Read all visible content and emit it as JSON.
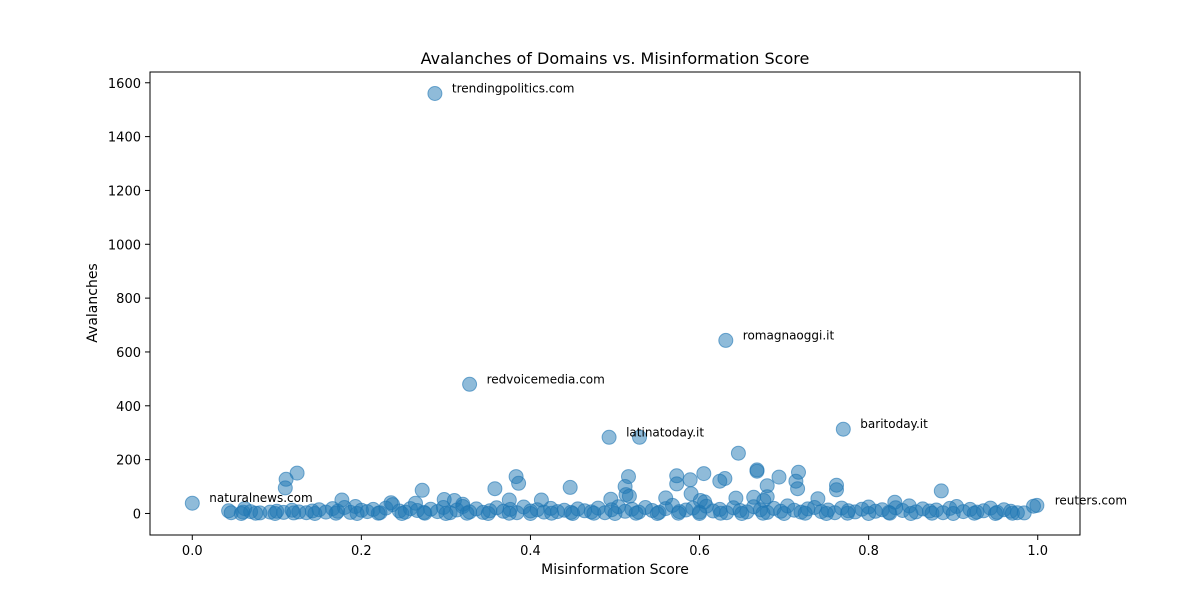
{
  "chart_data": {
    "type": "scatter",
    "title": "Avalanches of Domains vs. Misinformation Score",
    "xlabel": "Misinformation Score",
    "ylabel": "Avalanches",
    "xlim": [
      -0.05,
      1.05
    ],
    "ylim": [
      -80,
      1640
    ],
    "xticks": [
      0.0,
      0.2,
      0.4,
      0.6,
      0.8,
      1.0
    ],
    "xtick_labels": [
      "0.0",
      "0.2",
      "0.4",
      "0.6",
      "0.8",
      "1.0"
    ],
    "yticks": [
      0,
      200,
      400,
      600,
      800,
      1000,
      1200,
      1400,
      1600
    ],
    "ytick_labels": [
      "0",
      "200",
      "400",
      "600",
      "800",
      "1000",
      "1200",
      "1400",
      "1600"
    ],
    "grid": false,
    "legend": "none",
    "marker_color": "#1f77b4",
    "marker_alpha": 0.5,
    "annotations": [
      {
        "label": "trendingpolitics.com",
        "x": 0.287,
        "y": 1560
      },
      {
        "label": "romagnaoggi.it",
        "x": 0.631,
        "y": 643
      },
      {
        "label": "redvoicemedia.com",
        "x": 0.328,
        "y": 480
      },
      {
        "label": "baritoday.it",
        "x": 0.77,
        "y": 313
      },
      {
        "label": "latinatoday.it",
        "x": 0.493,
        "y": 283
      },
      {
        "label": "naturalnews.com",
        "x": 0.0,
        "y": 38
      },
      {
        "label": "reuters.com",
        "x": 1.0,
        "y": 30
      }
    ],
    "points": [
      [
        0.287,
        1560
      ],
      [
        0.631,
        643
      ],
      [
        0.328,
        480
      ],
      [
        0.77,
        313
      ],
      [
        0.493,
        283
      ],
      [
        0.529,
        283
      ],
      [
        0.646,
        224
      ],
      [
        0.668,
        162
      ],
      [
        0.668,
        157
      ],
      [
        0.717,
        153
      ],
      [
        0.124,
        150
      ],
      [
        0.605,
        148
      ],
      [
        0.383,
        137
      ],
      [
        0.516,
        137
      ],
      [
        0.573,
        140
      ],
      [
        0.694,
        135
      ],
      [
        0.63,
        130
      ],
      [
        0.111,
        127
      ],
      [
        0.589,
        125
      ],
      [
        0.624,
        120
      ],
      [
        0.714,
        120
      ],
      [
        0.386,
        112
      ],
      [
        0.573,
        110
      ],
      [
        0.762,
        105
      ],
      [
        0.68,
        103
      ],
      [
        0.716,
        92
      ],
      [
        0.11,
        95
      ],
      [
        0.358,
        92
      ],
      [
        0.447,
        97
      ],
      [
        0.512,
        100
      ],
      [
        0.762,
        88
      ],
      [
        0.886,
        84
      ],
      [
        0.272,
        86
      ],
      [
        0.59,
        73
      ],
      [
        0.513,
        70
      ],
      [
        0.517,
        64
      ],
      [
        0.643,
        57
      ],
      [
        0.664,
        60
      ],
      [
        0.68,
        62
      ],
      [
        0.74,
        55
      ],
      [
        0.177,
        50
      ],
      [
        0.298,
        52
      ],
      [
        0.31,
        48
      ],
      [
        0.375,
        50
      ],
      [
        0.413,
        50
      ],
      [
        0.495,
        53
      ],
      [
        0.56,
        58
      ],
      [
        0.601,
        48
      ],
      [
        0.606,
        43
      ],
      [
        0.676,
        48
      ],
      [
        0.831,
        42
      ],
      [
        0.235,
        40
      ],
      [
        0.264,
        38
      ],
      [
        0.32,
        34
      ],
      [
        0.999,
        30
      ],
      [
        0.995,
        27
      ],
      [
        0.0,
        38
      ],
      [
        0.062,
        18
      ],
      [
        0.043,
        10
      ],
      [
        0.046,
        3
      ],
      [
        0.06,
        5
      ],
      [
        0.069,
        7
      ],
      [
        0.08,
        2
      ],
      [
        0.092,
        5
      ],
      [
        0.1,
        8
      ],
      [
        0.108,
        4
      ],
      [
        0.118,
        12
      ],
      [
        0.126,
        6
      ],
      [
        0.135,
        3
      ],
      [
        0.142,
        9
      ],
      [
        0.15,
        14
      ],
      [
        0.158,
        5
      ],
      [
        0.166,
        18
      ],
      [
        0.172,
        8
      ],
      [
        0.18,
        22
      ],
      [
        0.187,
        4
      ],
      [
        0.193,
        26
      ],
      [
        0.2,
        12
      ],
      [
        0.207,
        7
      ],
      [
        0.214,
        15
      ],
      [
        0.222,
        3
      ],
      [
        0.229,
        20
      ],
      [
        0.237,
        33
      ],
      [
        0.245,
        9
      ],
      [
        0.252,
        5
      ],
      [
        0.258,
        18
      ],
      [
        0.266,
        11
      ],
      [
        0.274,
        4
      ],
      [
        0.282,
        16
      ],
      [
        0.29,
        7
      ],
      [
        0.297,
        22
      ],
      [
        0.305,
        3
      ],
      [
        0.313,
        13
      ],
      [
        0.32,
        26
      ],
      [
        0.328,
        6
      ],
      [
        0.336,
        17
      ],
      [
        0.344,
        4
      ],
      [
        0.352,
        10
      ],
      [
        0.36,
        21
      ],
      [
        0.368,
        8
      ],
      [
        0.376,
        15
      ],
      [
        0.384,
        3
      ],
      [
        0.392,
        24
      ],
      [
        0.4,
        9
      ],
      [
        0.408,
        14
      ],
      [
        0.416,
        5
      ],
      [
        0.424,
        19
      ],
      [
        0.432,
        7
      ],
      [
        0.44,
        12
      ],
      [
        0.448,
        4
      ],
      [
        0.456,
        17
      ],
      [
        0.464,
        10
      ],
      [
        0.472,
        6
      ],
      [
        0.48,
        20
      ],
      [
        0.488,
        3
      ],
      [
        0.496,
        14
      ],
      [
        0.504,
        25
      ],
      [
        0.512,
        8
      ],
      [
        0.52,
        16
      ],
      [
        0.528,
        5
      ],
      [
        0.536,
        22
      ],
      [
        0.544,
        11
      ],
      [
        0.552,
        4
      ],
      [
        0.56,
        18
      ],
      [
        0.568,
        30
      ],
      [
        0.576,
        7
      ],
      [
        0.584,
        13
      ],
      [
        0.592,
        20
      ],
      [
        0.6,
        5
      ],
      [
        0.608,
        27
      ],
      [
        0.616,
        9
      ],
      [
        0.624,
        15
      ],
      [
        0.632,
        3
      ],
      [
        0.64,
        21
      ],
      [
        0.648,
        11
      ],
      [
        0.656,
        6
      ],
      [
        0.664,
        25
      ],
      [
        0.672,
        14
      ],
      [
        0.68,
        4
      ],
      [
        0.688,
        19
      ],
      [
        0.696,
        8
      ],
      [
        0.704,
        28
      ],
      [
        0.712,
        12
      ],
      [
        0.72,
        5
      ],
      [
        0.728,
        17
      ],
      [
        0.736,
        22
      ],
      [
        0.744,
        7
      ],
      [
        0.752,
        13
      ],
      [
        0.76,
        3
      ],
      [
        0.768,
        20
      ],
      [
        0.776,
        10
      ],
      [
        0.784,
        6
      ],
      [
        0.792,
        16
      ],
      [
        0.8,
        24
      ],
      [
        0.808,
        8
      ],
      [
        0.816,
        14
      ],
      [
        0.824,
        4
      ],
      [
        0.832,
        21
      ],
      [
        0.84,
        11
      ],
      [
        0.848,
        28
      ],
      [
        0.856,
        6
      ],
      [
        0.864,
        17
      ],
      [
        0.872,
        9
      ],
      [
        0.88,
        13
      ],
      [
        0.888,
        3
      ],
      [
        0.896,
        19
      ],
      [
        0.904,
        26
      ],
      [
        0.912,
        7
      ],
      [
        0.92,
        15
      ],
      [
        0.928,
        5
      ],
      [
        0.936,
        10
      ],
      [
        0.944,
        20
      ],
      [
        0.952,
        4
      ],
      [
        0.96,
        14
      ],
      [
        0.968,
        8
      ],
      [
        0.976,
        3
      ],
      [
        0.984,
        2
      ],
      [
        0.058,
        0
      ],
      [
        0.075,
        1
      ],
      [
        0.098,
        0
      ],
      [
        0.12,
        2
      ],
      [
        0.145,
        0
      ],
      [
        0.17,
        1
      ],
      [
        0.195,
        0
      ],
      [
        0.22,
        1
      ],
      [
        0.248,
        0
      ],
      [
        0.275,
        1
      ],
      [
        0.3,
        0
      ],
      [
        0.325,
        1
      ],
      [
        0.35,
        0
      ],
      [
        0.375,
        1
      ],
      [
        0.4,
        0
      ],
      [
        0.425,
        1
      ],
      [
        0.45,
        0
      ],
      [
        0.475,
        1
      ],
      [
        0.5,
        0
      ],
      [
        0.525,
        1
      ],
      [
        0.55,
        0
      ],
      [
        0.575,
        1
      ],
      [
        0.6,
        0
      ],
      [
        0.625,
        1
      ],
      [
        0.65,
        0
      ],
      [
        0.675,
        1
      ],
      [
        0.7,
        0
      ],
      [
        0.725,
        1
      ],
      [
        0.75,
        0
      ],
      [
        0.775,
        1
      ],
      [
        0.8,
        0
      ],
      [
        0.825,
        1
      ],
      [
        0.85,
        0
      ],
      [
        0.875,
        1
      ],
      [
        0.9,
        0
      ],
      [
        0.925,
        1
      ],
      [
        0.95,
        0
      ],
      [
        0.97,
        1
      ]
    ]
  }
}
